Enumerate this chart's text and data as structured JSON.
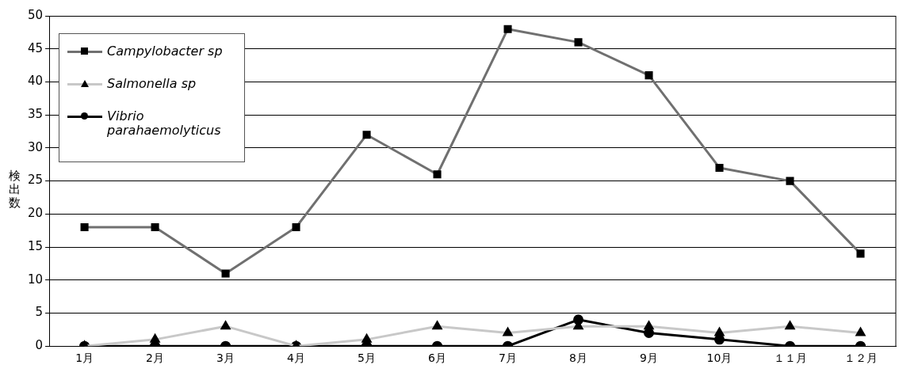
{
  "chart_data": {
    "type": "line",
    "ylabel": "検出数",
    "categories": [
      "1月",
      "2月",
      "3月",
      "4月",
      "5月",
      "6月",
      "7月",
      "8月",
      "9月",
      "10月",
      "１１月",
      "１２月"
    ],
    "series": [
      {
        "name": "Campylobacter sp",
        "color": "#707070",
        "marker": "square",
        "values": [
          18,
          18,
          11,
          18,
          32,
          26,
          48,
          46,
          41,
          27,
          25,
          14
        ]
      },
      {
        "name": "Salmonella sp",
        "color": "#c8c8c8",
        "marker": "triangle",
        "values": [
          0,
          1,
          3,
          0,
          1,
          3,
          2,
          3,
          3,
          2,
          3,
          2
        ]
      },
      {
        "name": "Vibrio parahaemolyticus",
        "color": "#000000",
        "marker": "circle",
        "values": [
          0,
          0,
          0,
          0,
          0,
          0,
          0,
          4,
          2,
          1,
          0,
          0
        ]
      }
    ],
    "ylim": [
      0,
      50
    ],
    "yticks": [
      0,
      5,
      10,
      15,
      20,
      25,
      30,
      35,
      40,
      45,
      50
    ],
    "grid": "y",
    "legend": "top left",
    "line_style": "solid"
  }
}
